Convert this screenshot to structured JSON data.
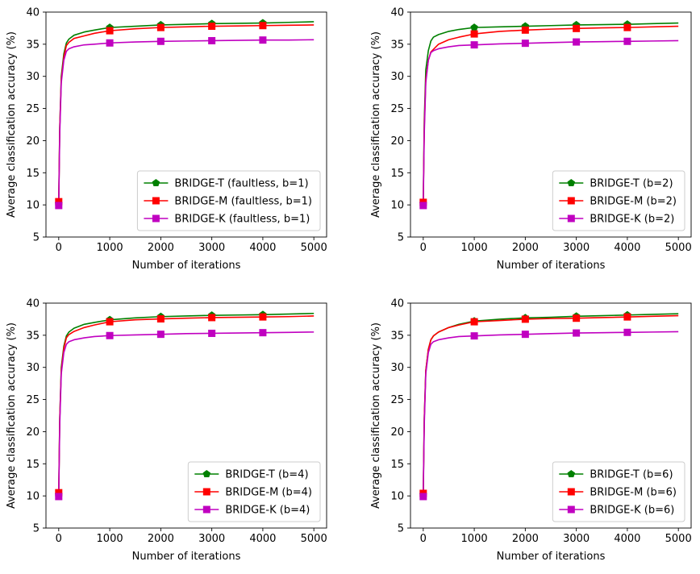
{
  "chart_data": [
    {
      "type": "line",
      "xlabel": "Number of iterations",
      "ylabel": "Average classification accuracy (%)",
      "xlim": [
        -250,
        5250
      ],
      "ylim": [
        5,
        40
      ],
      "xticks": [
        0,
        1000,
        2000,
        3000,
        4000,
        5000
      ],
      "yticks": [
        5,
        10,
        15,
        20,
        25,
        30,
        35,
        40
      ],
      "legend_loc": "lower-right",
      "series": [
        {
          "name": "BRIDGE-T (faultless, b=1)",
          "color": "#008000",
          "marker": "pentagon",
          "x": [
            0,
            20,
            50,
            100,
            150,
            200,
            300,
            500,
            700,
            1000,
            1500,
            2000,
            2500,
            3000,
            3500,
            4000,
            4500,
            5000
          ],
          "y": [
            10.2,
            22,
            30,
            33.5,
            35.2,
            35.8,
            36.4,
            36.9,
            37.2,
            37.6,
            37.8,
            38.0,
            38.1,
            38.2,
            38.25,
            38.3,
            38.4,
            38.5
          ],
          "marker_x": [
            0,
            1000,
            2000,
            3000,
            4000
          ],
          "marker_y": [
            10.2,
            37.6,
            38.0,
            38.2,
            38.3
          ]
        },
        {
          "name": "BRIDGE-M (faultless, b=1)",
          "color": "#ff0000",
          "marker": "square",
          "x": [
            0,
            20,
            50,
            100,
            150,
            200,
            300,
            500,
            700,
            1000,
            1500,
            2000,
            2500,
            3000,
            3500,
            4000,
            4500,
            5000
          ],
          "y": [
            10.5,
            22,
            29.5,
            33,
            34.8,
            35.3,
            35.9,
            36.3,
            36.7,
            37.1,
            37.4,
            37.6,
            37.7,
            37.8,
            37.85,
            37.9,
            37.95,
            38.0
          ],
          "marker_x": [
            0,
            1000,
            2000,
            3000,
            4000
          ],
          "marker_y": [
            10.5,
            37.1,
            37.6,
            37.8,
            37.9
          ]
        },
        {
          "name": "BRIDGE-K (faultless, b=1)",
          "color": "#c000c0",
          "marker": "square",
          "x": [
            0,
            20,
            50,
            100,
            150,
            200,
            300,
            500,
            700,
            1000,
            1500,
            2000,
            2500,
            3000,
            3500,
            4000,
            4500,
            5000
          ],
          "y": [
            9.9,
            21,
            29,
            32.5,
            33.9,
            34.3,
            34.6,
            34.9,
            35.0,
            35.2,
            35.35,
            35.45,
            35.5,
            35.55,
            35.6,
            35.65,
            35.65,
            35.7
          ],
          "marker_x": [
            0,
            1000,
            2000,
            3000,
            4000
          ],
          "marker_y": [
            9.9,
            35.2,
            35.45,
            35.55,
            35.65
          ]
        }
      ]
    },
    {
      "type": "line",
      "xlabel": "Number of iterations",
      "ylabel": "Average classification accuracy (%)",
      "xlim": [
        -250,
        5250
      ],
      "ylim": [
        5,
        40
      ],
      "xticks": [
        0,
        1000,
        2000,
        3000,
        4000,
        5000
      ],
      "yticks": [
        5,
        10,
        15,
        20,
        25,
        30,
        35,
        40
      ],
      "legend_loc": "lower-right",
      "series": [
        {
          "name": "BRIDGE-T (b=2)",
          "color": "#008000",
          "marker": "pentagon",
          "x": [
            0,
            20,
            50,
            100,
            150,
            200,
            300,
            500,
            700,
            1000,
            1500,
            2000,
            2500,
            3000,
            3500,
            4000,
            4500,
            5000
          ],
          "y": [
            10.2,
            23,
            31,
            34,
            35.5,
            36.1,
            36.5,
            37.0,
            37.3,
            37.6,
            37.7,
            37.8,
            37.9,
            38.0,
            38.05,
            38.1,
            38.2,
            38.3
          ],
          "marker_x": [
            0,
            1000,
            2000,
            3000,
            4000
          ],
          "marker_y": [
            10.2,
            37.6,
            37.8,
            38.0,
            38.1
          ]
        },
        {
          "name": "BRIDGE-M (b=2)",
          "color": "#ff0000",
          "marker": "square",
          "x": [
            0,
            20,
            50,
            100,
            150,
            200,
            300,
            500,
            700,
            1000,
            1500,
            2000,
            2500,
            3000,
            3500,
            4000,
            4500,
            5000
          ],
          "y": [
            10.4,
            22,
            29.5,
            32.5,
            33.8,
            34.2,
            35.0,
            35.7,
            36.1,
            36.6,
            37.0,
            37.2,
            37.35,
            37.45,
            37.55,
            37.6,
            37.7,
            37.8
          ],
          "marker_x": [
            0,
            1000,
            2000,
            3000,
            4000
          ],
          "marker_y": [
            10.4,
            36.6,
            37.2,
            37.45,
            37.6
          ]
        },
        {
          "name": "BRIDGE-K (b=2)",
          "color": "#c000c0",
          "marker": "square",
          "x": [
            0,
            20,
            50,
            100,
            150,
            200,
            300,
            500,
            700,
            1000,
            1500,
            2000,
            2500,
            3000,
            3500,
            4000,
            4500,
            5000
          ],
          "y": [
            9.9,
            21,
            29,
            32.5,
            33.7,
            34.0,
            34.3,
            34.6,
            34.8,
            34.9,
            35.05,
            35.15,
            35.25,
            35.35,
            35.4,
            35.45,
            35.5,
            35.55
          ],
          "marker_x": [
            0,
            1000,
            2000,
            3000,
            4000
          ],
          "marker_y": [
            9.9,
            34.9,
            35.15,
            35.35,
            35.45
          ]
        }
      ]
    },
    {
      "type": "line",
      "xlabel": "Number of iterations",
      "ylabel": "Average classification accuracy (%)",
      "xlim": [
        -250,
        5250
      ],
      "ylim": [
        5,
        40
      ],
      "xticks": [
        0,
        1000,
        2000,
        3000,
        4000,
        5000
      ],
      "yticks": [
        5,
        10,
        15,
        20,
        25,
        30,
        35,
        40
      ],
      "legend_loc": "lower-right",
      "series": [
        {
          "name": "BRIDGE-T (b=4)",
          "color": "#008000",
          "marker": "pentagon",
          "x": [
            0,
            20,
            50,
            100,
            150,
            200,
            300,
            500,
            700,
            1000,
            1500,
            2000,
            2500,
            3000,
            3500,
            4000,
            4500,
            5000
          ],
          "y": [
            10.2,
            22,
            30,
            33.3,
            34.9,
            35.5,
            36.1,
            36.7,
            37.0,
            37.4,
            37.7,
            37.9,
            38.0,
            38.1,
            38.15,
            38.2,
            38.3,
            38.4
          ],
          "marker_x": [
            0,
            1000,
            2000,
            3000,
            4000
          ],
          "marker_y": [
            10.2,
            37.4,
            37.9,
            38.1,
            38.2
          ]
        },
        {
          "name": "BRIDGE-M (b=4)",
          "color": "#ff0000",
          "marker": "square",
          "x": [
            0,
            20,
            50,
            100,
            150,
            200,
            300,
            500,
            700,
            1000,
            1500,
            2000,
            2500,
            3000,
            3500,
            4000,
            4500,
            5000
          ],
          "y": [
            10.5,
            22,
            29.5,
            33,
            34.6,
            35.1,
            35.6,
            36.2,
            36.6,
            37.1,
            37.4,
            37.55,
            37.65,
            37.75,
            37.8,
            37.85,
            37.9,
            38.0
          ],
          "marker_x": [
            0,
            1000,
            2000,
            3000,
            4000
          ],
          "marker_y": [
            10.5,
            37.1,
            37.55,
            37.75,
            37.85
          ]
        },
        {
          "name": "BRIDGE-K (b=4)",
          "color": "#c000c0",
          "marker": "square",
          "x": [
            0,
            20,
            50,
            100,
            150,
            200,
            300,
            500,
            700,
            1000,
            1500,
            2000,
            2500,
            3000,
            3500,
            4000,
            4500,
            5000
          ],
          "y": [
            9.9,
            21,
            29,
            32.3,
            33.6,
            34.0,
            34.3,
            34.6,
            34.8,
            34.95,
            35.05,
            35.15,
            35.25,
            35.3,
            35.35,
            35.4,
            35.45,
            35.5
          ],
          "marker_x": [
            0,
            1000,
            2000,
            3000,
            4000
          ],
          "marker_y": [
            9.9,
            34.95,
            35.15,
            35.3,
            35.4
          ]
        }
      ]
    },
    {
      "type": "line",
      "xlabel": "Number of iterations",
      "ylabel": "Average classification accuracy (%)",
      "xlim": [
        -250,
        5250
      ],
      "ylim": [
        5,
        40
      ],
      "xticks": [
        0,
        1000,
        2000,
        3000,
        4000,
        5000
      ],
      "yticks": [
        5,
        10,
        15,
        20,
        25,
        30,
        35,
        40
      ],
      "legend_loc": "lower-right",
      "series": [
        {
          "name": "BRIDGE-T (b=6)",
          "color": "#008000",
          "marker": "pentagon",
          "x": [
            0,
            20,
            50,
            100,
            150,
            200,
            300,
            500,
            700,
            1000,
            1500,
            2000,
            2500,
            3000,
            3500,
            4000,
            4500,
            5000
          ],
          "y": [
            10.2,
            22,
            29.5,
            32.8,
            34.3,
            34.9,
            35.5,
            36.2,
            36.7,
            37.2,
            37.5,
            37.7,
            37.8,
            37.95,
            38.05,
            38.15,
            38.25,
            38.35
          ],
          "marker_x": [
            0,
            1000,
            2000,
            3000,
            4000
          ],
          "marker_y": [
            10.2,
            37.2,
            37.7,
            37.95,
            38.15
          ]
        },
        {
          "name": "BRIDGE-M (b=6)",
          "color": "#ff0000",
          "marker": "square",
          "x": [
            0,
            20,
            50,
            100,
            150,
            200,
            300,
            500,
            700,
            1000,
            1500,
            2000,
            2500,
            3000,
            3500,
            4000,
            4500,
            5000
          ],
          "y": [
            10.4,
            22,
            29.5,
            32.8,
            34.3,
            34.9,
            35.5,
            36.2,
            36.6,
            37.1,
            37.3,
            37.5,
            37.6,
            37.65,
            37.75,
            37.85,
            37.95,
            38.05
          ],
          "marker_x": [
            0,
            1000,
            2000,
            3000,
            4000
          ],
          "marker_y": [
            10.4,
            37.1,
            37.5,
            37.65,
            37.85
          ]
        },
        {
          "name": "BRIDGE-K (b=6)",
          "color": "#c000c0",
          "marker": "square",
          "x": [
            0,
            20,
            50,
            100,
            150,
            200,
            300,
            500,
            700,
            1000,
            1500,
            2000,
            2500,
            3000,
            3500,
            4000,
            4500,
            5000
          ],
          "y": [
            9.9,
            21,
            29,
            32.3,
            33.6,
            34.0,
            34.3,
            34.6,
            34.8,
            34.9,
            35.05,
            35.15,
            35.25,
            35.35,
            35.4,
            35.45,
            35.5,
            35.55
          ],
          "marker_x": [
            0,
            1000,
            2000,
            3000,
            4000
          ],
          "marker_y": [
            9.9,
            34.9,
            35.15,
            35.35,
            35.45
          ]
        }
      ]
    }
  ]
}
